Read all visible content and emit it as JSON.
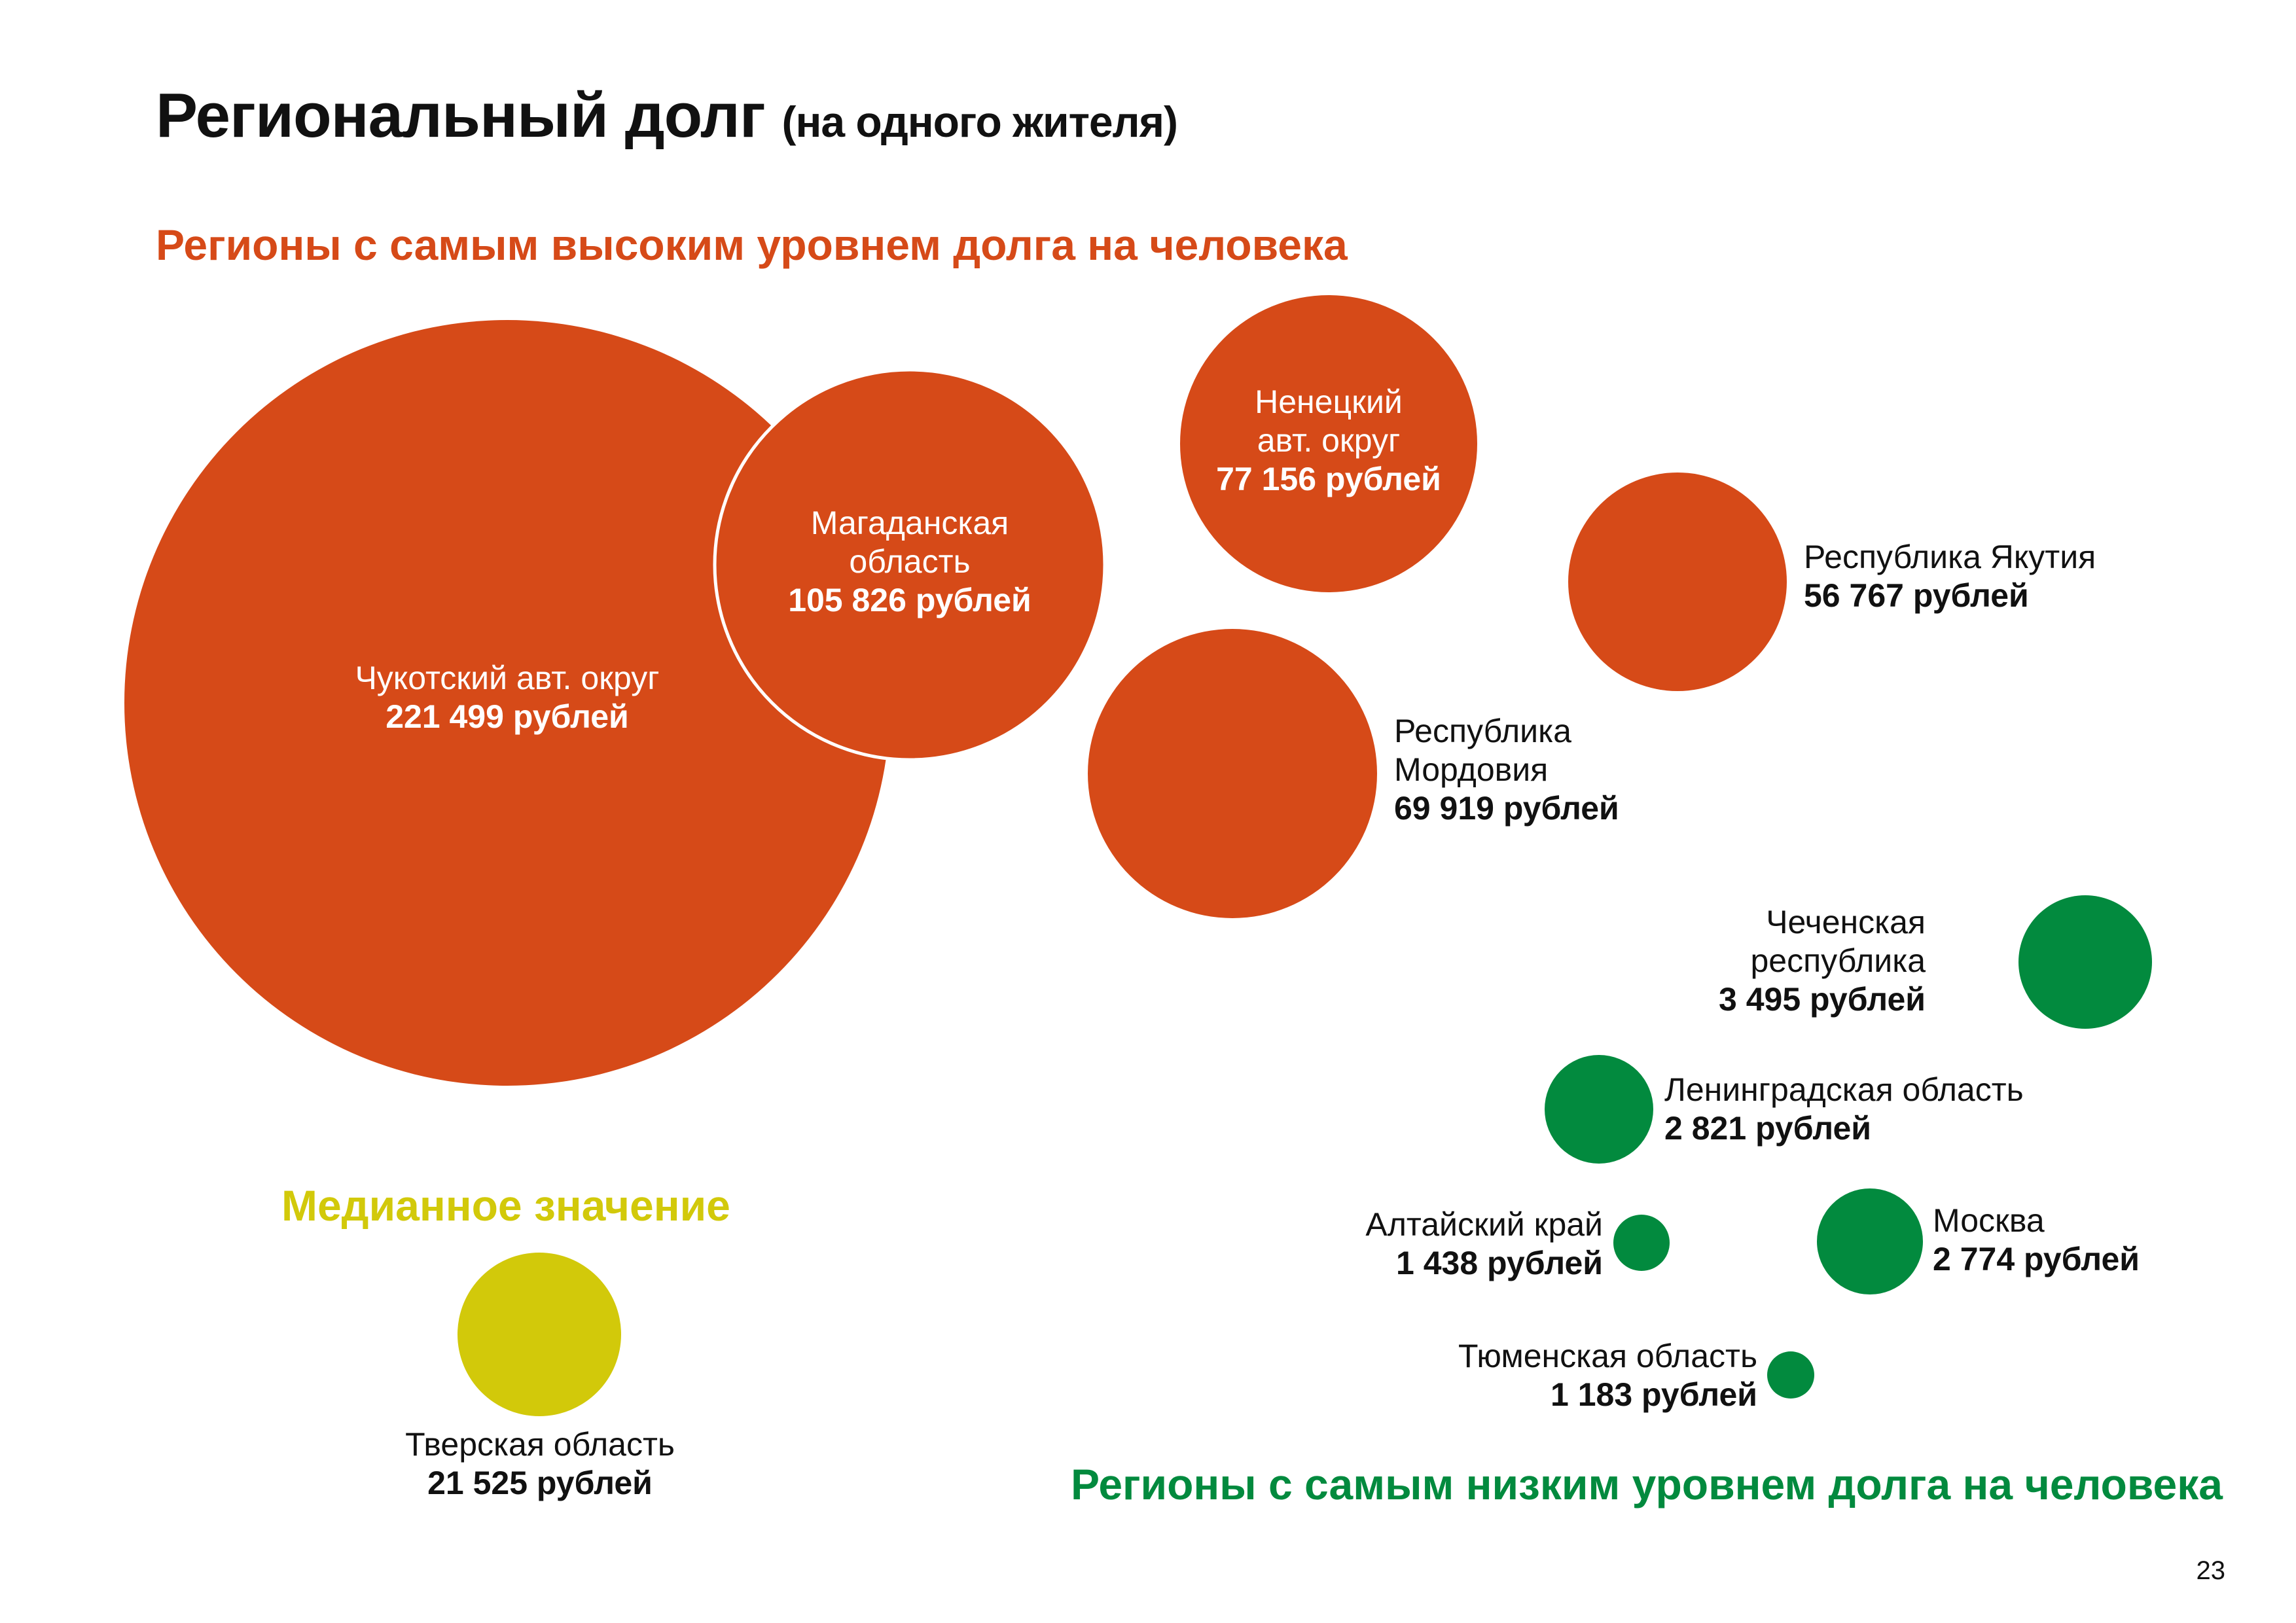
{
  "title": "Региональный долг",
  "title_sub": "(на одного жителя)",
  "page_number": "23",
  "colors": {
    "high": "#d64a18",
    "low": "#028a3e",
    "median": "#d2c90a",
    "text": "#111111"
  },
  "chart_data": {
    "type": "bubble",
    "title": "Региональный долг (на одного жителя)",
    "unit": "рублей",
    "groups": [
      {
        "key": "high",
        "heading": "Регионы с самым высоким уровнем долга на человека",
        "color": "#d64a18",
        "items": [
          {
            "key": "chukotka",
            "name": "Чукотский авт. округ",
            "name_lines": [
              "Чукотский авт. округ"
            ],
            "value": 221499,
            "value_label": "221 499 рублей"
          },
          {
            "key": "magadan",
            "name": "Магаданская область",
            "name_lines": [
              "Магаданская",
              "область"
            ],
            "value": 105826,
            "value_label": "105 826 рублей"
          },
          {
            "key": "nenets",
            "name": "Ненецкий авт. округ",
            "name_lines": [
              "Ненецкий",
              "авт. округ"
            ],
            "value": 77156,
            "value_label": "77 156 рублей"
          },
          {
            "key": "mordovia",
            "name": "Республика Мордовия",
            "name_lines": [
              "Республика",
              "Мордовия"
            ],
            "value": 69919,
            "value_label": "69 919 рублей"
          },
          {
            "key": "yakutia",
            "name": "Республика Якутия",
            "name_lines": [
              "Республика Якутия"
            ],
            "value": 56767,
            "value_label": "56 767 рублей"
          }
        ]
      },
      {
        "key": "low",
        "heading": "Регионы с самым низким уровнем долга на человека",
        "color": "#028a3e",
        "items": [
          {
            "key": "chechnya",
            "name": "Чеченская республика",
            "name_lines": [
              "Чеченская",
              "республика"
            ],
            "value": 3495,
            "value_label": "3 495 рублей"
          },
          {
            "key": "leningrad",
            "name": "Ленинградская область",
            "name_lines": [
              "Ленинградская область"
            ],
            "value": 2821,
            "value_label": "2 821 рублей"
          },
          {
            "key": "moscow",
            "name": "Москва",
            "name_lines": [
              "Москва"
            ],
            "value": 2774,
            "value_label": "2 774 рублей"
          },
          {
            "key": "altai",
            "name": "Алтайский край",
            "name_lines": [
              "Алтайский край"
            ],
            "value": 1438,
            "value_label": "1 438 рублей"
          },
          {
            "key": "tyumen",
            "name": "Тюменская область",
            "name_lines": [
              "Тюменская область"
            ],
            "value": 1183,
            "value_label": "1 183 рублей"
          }
        ]
      },
      {
        "key": "median",
        "heading": "Медианное значение",
        "color": "#d2c90a",
        "items": [
          {
            "key": "tver",
            "name": "Тверская область",
            "name_lines": [
              "Тверская область"
            ],
            "value": 21525,
            "value_label": "21 525 рублей"
          }
        ]
      }
    ]
  }
}
